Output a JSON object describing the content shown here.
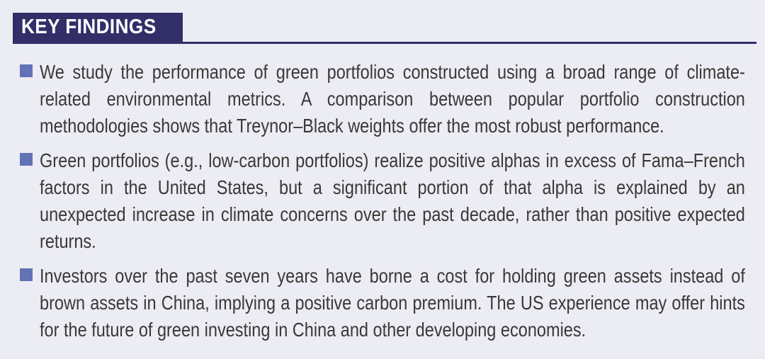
{
  "header": {
    "title": "KEY FINDINGS"
  },
  "findings": {
    "items": [
      {
        "text": "We study the performance of green portfolios constructed using a broad range of climate-related environmental metrics. A comparison between popular portfolio construction methodologies shows that Treynor–Black weights offer the most robust performance."
      },
      {
        "text": "Green portfolios (e.g., low-carbon portfolios) realize positive alphas in excess of Fama–French factors in the United States, but a significant portion of that alpha is explained by an unexpected increase in climate concerns over the past decade, rather than positive expected returns."
      },
      {
        "text": "Investors over the past seven years have borne a cost for holding green assets instead of brown assets in China, implying a positive carbon premium. The US experience may offer hints for the future of green investing in China and other developing economies."
      }
    ]
  },
  "colors": {
    "background": "#ECECF4",
    "header_navy": "#322E68",
    "bullet_blue": "#6272B4",
    "body_text": "#3A3836",
    "header_text": "#FFFFFF"
  },
  "icons": {
    "bullet": "square-bullet"
  }
}
